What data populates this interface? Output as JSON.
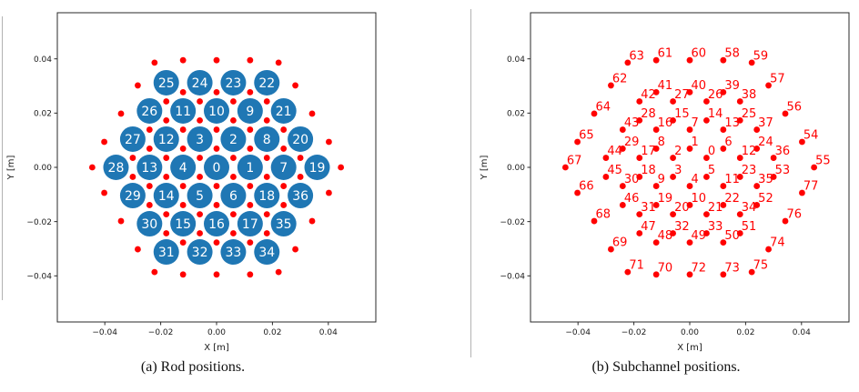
{
  "colors": {
    "rod_fill": "#1f77b4",
    "rod_label": "#ffffff",
    "subchannel_red": "#ff0000",
    "axis_text": "#1a1a1a"
  },
  "chart_data": [
    {
      "type": "scatter",
      "caption": "(a) Rod positions.",
      "xlabel": "X [m]",
      "ylabel": "Y [m]",
      "xlim": [
        -0.057,
        0.057
      ],
      "ylim": [
        -0.057,
        0.057
      ],
      "xticks": [
        -0.04,
        -0.02,
        0,
        0.02,
        0.04
      ],
      "xtick_labels": [
        "−0.04",
        "−0.02",
        "0.00",
        "0.02",
        "0.04"
      ],
      "yticks": [
        -0.04,
        -0.02,
        0,
        0.02,
        0.04
      ],
      "ytick_labels": [
        "−0.04",
        "−0.02",
        "0.00",
        "0.02",
        "0.04"
      ],
      "grid": false,
      "legend": null,
      "series": [
        {
          "name": "fuel-rods",
          "marker": "filled-circle",
          "color": "#1f77b4",
          "label_color": "#ffffff",
          "point_format": [
            "id",
            "x",
            "y"
          ],
          "points": [
            [
              0,
              0.0,
              0.0
            ],
            [
              1,
              0.012,
              0.0
            ],
            [
              2,
              0.006,
              0.0104
            ],
            [
              3,
              -0.006,
              0.0104
            ],
            [
              4,
              -0.012,
              0.0
            ],
            [
              5,
              -0.006,
              -0.0104
            ],
            [
              6,
              0.006,
              -0.0104
            ],
            [
              7,
              0.024,
              0.0
            ],
            [
              8,
              0.018,
              0.0104
            ],
            [
              9,
              0.012,
              0.0208
            ],
            [
              10,
              0.0,
              0.0208
            ],
            [
              11,
              -0.012,
              0.0208
            ],
            [
              12,
              -0.018,
              0.0104
            ],
            [
              13,
              -0.024,
              0.0
            ],
            [
              14,
              -0.018,
              -0.0104
            ],
            [
              15,
              -0.012,
              -0.0208
            ],
            [
              16,
              0.0,
              -0.0208
            ],
            [
              17,
              0.012,
              -0.0208
            ],
            [
              18,
              0.018,
              -0.0104
            ],
            [
              19,
              0.036,
              0.0
            ],
            [
              20,
              0.03,
              0.0104
            ],
            [
              21,
              0.024,
              0.0208
            ],
            [
              22,
              0.018,
              0.0312
            ],
            [
              23,
              0.006,
              0.0312
            ],
            [
              24,
              -0.006,
              0.0312
            ],
            [
              25,
              -0.018,
              0.0312
            ],
            [
              26,
              -0.024,
              0.0208
            ],
            [
              27,
              -0.03,
              0.0104
            ],
            [
              28,
              -0.036,
              0.0
            ],
            [
              29,
              -0.03,
              -0.0104
            ],
            [
              30,
              -0.024,
              -0.0208
            ],
            [
              31,
              -0.018,
              -0.0312
            ],
            [
              32,
              -0.006,
              -0.0312
            ],
            [
              33,
              0.006,
              -0.0312
            ],
            [
              34,
              0.018,
              -0.0312
            ],
            [
              35,
              0.024,
              -0.0208
            ],
            [
              36,
              0.03,
              -0.0104
            ]
          ]
        },
        {
          "name": "subchannel-centroids",
          "marker": "dot",
          "color": "#ff0000",
          "point_format": [
            "x",
            "y"
          ],
          "points": [
            [
              0.006,
              0.0035
            ],
            [
              0.0,
              0.0069
            ],
            [
              -0.006,
              0.0035
            ],
            [
              -0.006,
              -0.0035
            ],
            [
              0.0,
              -0.0069
            ],
            [
              0.006,
              -0.0035
            ],
            [
              0.012,
              0.0069
            ],
            [
              0.0,
              0.0139
            ],
            [
              -0.012,
              0.0069
            ],
            [
              -0.012,
              -0.0069
            ],
            [
              0.0,
              -0.0139
            ],
            [
              0.012,
              -0.0069
            ],
            [
              0.018,
              0.0035
            ],
            [
              0.012,
              0.0139
            ],
            [
              0.006,
              0.0173
            ],
            [
              -0.006,
              0.0173
            ],
            [
              -0.012,
              0.0139
            ],
            [
              -0.018,
              0.0035
            ],
            [
              -0.018,
              -0.0035
            ],
            [
              -0.012,
              -0.0139
            ],
            [
              -0.006,
              -0.0173
            ],
            [
              0.006,
              -0.0173
            ],
            [
              0.012,
              -0.0139
            ],
            [
              0.018,
              -0.0035
            ],
            [
              0.024,
              0.0069
            ],
            [
              0.018,
              0.0173
            ],
            [
              0.006,
              0.0243
            ],
            [
              -0.006,
              0.0243
            ],
            [
              -0.018,
              0.0173
            ],
            [
              -0.024,
              0.0069
            ],
            [
              -0.024,
              -0.0069
            ],
            [
              -0.018,
              -0.0173
            ],
            [
              -0.006,
              -0.0243
            ],
            [
              0.006,
              -0.0243
            ],
            [
              0.018,
              -0.0173
            ],
            [
              0.024,
              -0.0069
            ],
            [
              0.03,
              0.0035
            ],
            [
              0.024,
              0.0139
            ],
            [
              0.018,
              0.0243
            ],
            [
              0.012,
              0.0277
            ],
            [
              0.0,
              0.0277
            ],
            [
              -0.012,
              0.0277
            ],
            [
              -0.018,
              0.0243
            ],
            [
              -0.024,
              0.0139
            ],
            [
              -0.03,
              0.0035
            ],
            [
              -0.03,
              -0.0035
            ],
            [
              -0.024,
              -0.0139
            ],
            [
              -0.018,
              -0.0243
            ],
            [
              -0.012,
              -0.0277
            ],
            [
              0.0,
              -0.0277
            ],
            [
              0.012,
              -0.0277
            ],
            [
              0.018,
              -0.0243
            ],
            [
              0.024,
              -0.0139
            ],
            [
              0.03,
              -0.0035
            ],
            [
              0.0402,
              0.0094
            ],
            [
              0.0445,
              0.0
            ],
            [
              0.0342,
              0.0198
            ],
            [
              0.0282,
              0.0302
            ],
            [
              0.012,
              0.0395
            ],
            [
              0.0222,
              0.0386
            ],
            [
              0.0,
              0.0395
            ],
            [
              -0.012,
              0.0395
            ],
            [
              -0.0282,
              0.0302
            ],
            [
              -0.0222,
              0.0386
            ],
            [
              -0.0342,
              0.0198
            ],
            [
              -0.0402,
              0.0094
            ],
            [
              -0.0402,
              -0.0094
            ],
            [
              -0.0445,
              0.0
            ],
            [
              -0.0342,
              -0.0198
            ],
            [
              -0.0282,
              -0.0302
            ],
            [
              -0.012,
              -0.0395
            ],
            [
              -0.0222,
              -0.0386
            ],
            [
              0.0,
              -0.0395
            ],
            [
              0.012,
              -0.0395
            ],
            [
              0.0282,
              -0.0302
            ],
            [
              0.0222,
              -0.0386
            ],
            [
              0.0342,
              -0.0198
            ],
            [
              0.0402,
              -0.0094
            ]
          ]
        }
      ]
    },
    {
      "type": "scatter",
      "caption": "(b) Subchannel positions.",
      "xlabel": "X [m]",
      "ylabel": "Y [m]",
      "xlim": [
        -0.057,
        0.057
      ],
      "ylim": [
        -0.057,
        0.057
      ],
      "xticks": [
        -0.04,
        -0.02,
        0,
        0.02,
        0.04
      ],
      "xtick_labels": [
        "−0.04",
        "−0.02",
        "0.00",
        "0.02",
        "0.04"
      ],
      "yticks": [
        -0.04,
        -0.02,
        0,
        0.02,
        0.04
      ],
      "ytick_labels": [
        "−0.04",
        "−0.02",
        "0.00",
        "0.02",
        "0.04"
      ],
      "grid": false,
      "legend": null,
      "series": [
        {
          "name": "subchannel-centroids",
          "marker": "dot-with-label",
          "color": "#ff0000",
          "label_color": "#ff0000",
          "point_format": [
            "id",
            "x",
            "y"
          ],
          "points": [
            [
              0,
              0.006,
              0.0035
            ],
            [
              1,
              0.0,
              0.0069
            ],
            [
              2,
              -0.006,
              0.0035
            ],
            [
              3,
              -0.006,
              -0.0035
            ],
            [
              4,
              0.0,
              -0.0069
            ],
            [
              5,
              0.006,
              -0.0035
            ],
            [
              6,
              0.012,
              0.0069
            ],
            [
              7,
              0.0,
              0.0139
            ],
            [
              8,
              -0.012,
              0.0069
            ],
            [
              9,
              -0.012,
              -0.0069
            ],
            [
              10,
              0.0,
              -0.0139
            ],
            [
              11,
              0.012,
              -0.0069
            ],
            [
              12,
              0.018,
              0.0035
            ],
            [
              13,
              0.012,
              0.0139
            ],
            [
              14,
              0.006,
              0.0173
            ],
            [
              15,
              -0.006,
              0.0173
            ],
            [
              16,
              -0.012,
              0.0139
            ],
            [
              17,
              -0.018,
              0.0035
            ],
            [
              18,
              -0.018,
              -0.0035
            ],
            [
              19,
              -0.012,
              -0.0139
            ],
            [
              20,
              -0.006,
              -0.0173
            ],
            [
              21,
              0.006,
              -0.0173
            ],
            [
              22,
              0.012,
              -0.0139
            ],
            [
              23,
              0.018,
              -0.0035
            ],
            [
              24,
              0.024,
              0.0069
            ],
            [
              25,
              0.018,
              0.0173
            ],
            [
              26,
              0.006,
              0.0243
            ],
            [
              27,
              -0.006,
              0.0243
            ],
            [
              28,
              -0.018,
              0.0173
            ],
            [
              29,
              -0.024,
              0.0069
            ],
            [
              30,
              -0.024,
              -0.0069
            ],
            [
              31,
              -0.018,
              -0.0173
            ],
            [
              32,
              -0.006,
              -0.0243
            ],
            [
              33,
              0.006,
              -0.0243
            ],
            [
              34,
              0.018,
              -0.0173
            ],
            [
              35,
              0.024,
              -0.0069
            ],
            [
              36,
              0.03,
              0.0035
            ],
            [
              37,
              0.024,
              0.0139
            ],
            [
              38,
              0.018,
              0.0243
            ],
            [
              39,
              0.012,
              0.0277
            ],
            [
              40,
              0.0,
              0.0277
            ],
            [
              41,
              -0.012,
              0.0277
            ],
            [
              42,
              -0.018,
              0.0243
            ],
            [
              43,
              -0.024,
              0.0139
            ],
            [
              44,
              -0.03,
              0.0035
            ],
            [
              45,
              -0.03,
              -0.0035
            ],
            [
              46,
              -0.024,
              -0.0139
            ],
            [
              47,
              -0.018,
              -0.0243
            ],
            [
              48,
              -0.012,
              -0.0277
            ],
            [
              49,
              0.0,
              -0.0277
            ],
            [
              50,
              0.012,
              -0.0277
            ],
            [
              51,
              0.018,
              -0.0243
            ],
            [
              52,
              0.024,
              -0.0139
            ],
            [
              53,
              0.03,
              -0.0035
            ],
            [
              54,
              0.0402,
              0.0094
            ],
            [
              55,
              0.0445,
              0.0
            ],
            [
              56,
              0.0342,
              0.0198
            ],
            [
              57,
              0.0282,
              0.0302
            ],
            [
              58,
              0.012,
              0.0395
            ],
            [
              59,
              0.0222,
              0.0386
            ],
            [
              60,
              0.0,
              0.0395
            ],
            [
              61,
              -0.012,
              0.0395
            ],
            [
              62,
              -0.0282,
              0.0302
            ],
            [
              63,
              -0.0222,
              0.0386
            ],
            [
              64,
              -0.0342,
              0.0198
            ],
            [
              65,
              -0.0402,
              0.0094
            ],
            [
              66,
              -0.0402,
              -0.0094
            ],
            [
              67,
              -0.0445,
              0.0
            ],
            [
              68,
              -0.0342,
              -0.0198
            ],
            [
              69,
              -0.0282,
              -0.0302
            ],
            [
              70,
              -0.012,
              -0.0395
            ],
            [
              71,
              -0.0222,
              -0.0386
            ],
            [
              72,
              0.0,
              -0.0395
            ],
            [
              73,
              0.012,
              -0.0395
            ],
            [
              74,
              0.0282,
              -0.0302
            ],
            [
              75,
              0.0222,
              -0.0386
            ],
            [
              76,
              0.0342,
              -0.0198
            ],
            [
              77,
              0.0402,
              -0.0094
            ]
          ]
        }
      ]
    }
  ]
}
